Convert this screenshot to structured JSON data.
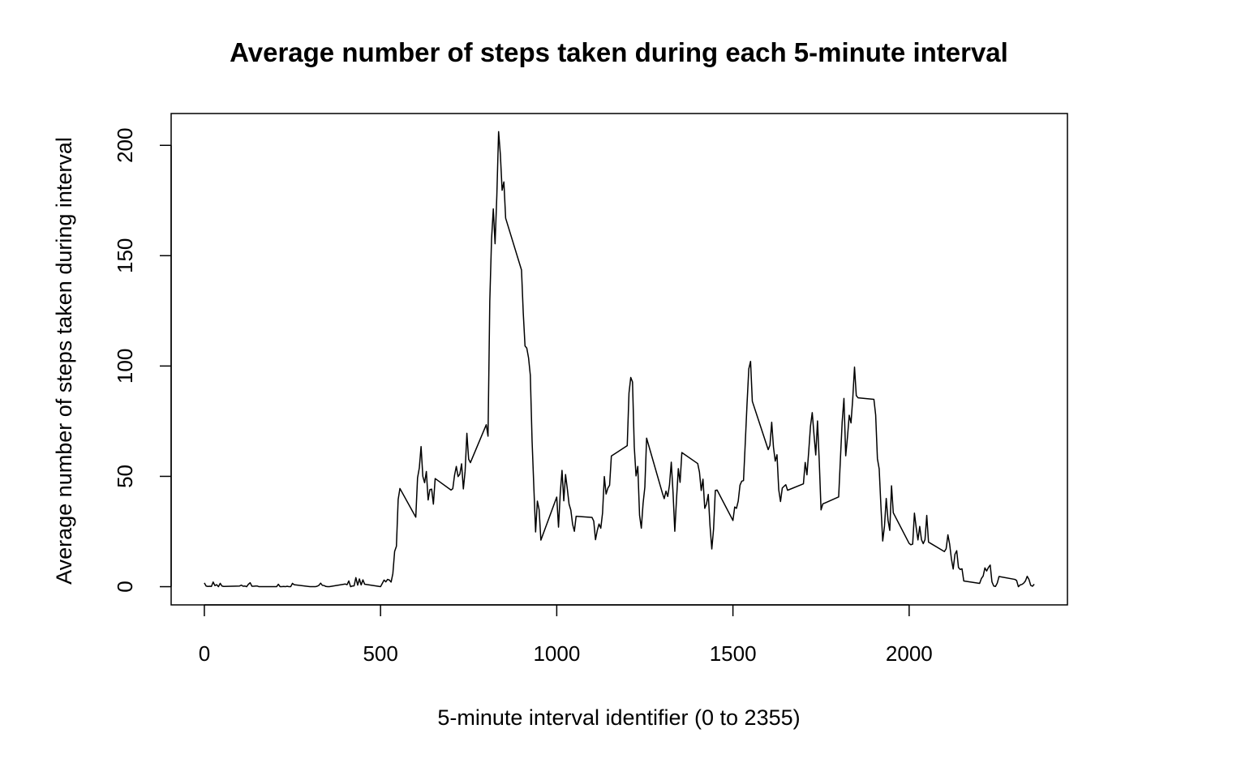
{
  "chart_data": {
    "type": "line",
    "title": "Average number of steps taken during each 5-minute interval",
    "x_label": "5-minute interval identifier (0 to 2355)",
    "y_label": "Average number of steps taken during interval",
    "color": "#000000",
    "x": [
      0,
      5,
      10,
      15,
      20,
      25,
      30,
      35,
      40,
      45,
      50,
      55,
      100,
      105,
      110,
      115,
      120,
      125,
      130,
      135,
      140,
      145,
      150,
      155,
      200,
      205,
      210,
      215,
      220,
      225,
      230,
      235,
      240,
      245,
      250,
      255,
      300,
      305,
      310,
      315,
      320,
      325,
      330,
      335,
      340,
      345,
      350,
      355,
      400,
      405,
      410,
      415,
      420,
      425,
      430,
      435,
      440,
      445,
      450,
      455,
      500,
      505,
      510,
      515,
      520,
      525,
      530,
      535,
      540,
      545,
      550,
      555,
      600,
      605,
      610,
      615,
      620,
      625,
      630,
      635,
      640,
      645,
      650,
      655,
      700,
      705,
      710,
      715,
      720,
      725,
      730,
      735,
      740,
      745,
      750,
      755,
      800,
      805,
      810,
      815,
      820,
      825,
      830,
      835,
      840,
      845,
      850,
      855,
      900,
      905,
      910,
      915,
      920,
      925,
      930,
      935,
      940,
      945,
      950,
      955,
      1000,
      1005,
      1010,
      1015,
      1020,
      1025,
      1030,
      1035,
      1040,
      1045,
      1050,
      1055,
      1100,
      1105,
      1110,
      1115,
      1120,
      1125,
      1130,
      1135,
      1140,
      1145,
      1150,
      1155,
      1200,
      1205,
      1210,
      1215,
      1220,
      1225,
      1230,
      1235,
      1240,
      1245,
      1250,
      1255,
      1300,
      1305,
      1310,
      1315,
      1320,
      1325,
      1330,
      1335,
      1340,
      1345,
      1350,
      1355,
      1400,
      1405,
      1410,
      1415,
      1420,
      1425,
      1430,
      1435,
      1440,
      1445,
      1450,
      1455,
      1500,
      1505,
      1510,
      1515,
      1520,
      1525,
      1530,
      1535,
      1540,
      1545,
      1550,
      1555,
      1600,
      1605,
      1610,
      1615,
      1620,
      1625,
      1630,
      1635,
      1640,
      1645,
      1650,
      1655,
      1700,
      1705,
      1710,
      1715,
      1720,
      1725,
      1730,
      1735,
      1740,
      1745,
      1750,
      1755,
      1800,
      1805,
      1810,
      1815,
      1820,
      1825,
      1830,
      1835,
      1840,
      1845,
      1850,
      1855,
      1900,
      1905,
      1910,
      1915,
      1920,
      1925,
      1930,
      1935,
      1940,
      1945,
      1950,
      1955,
      2000,
      2005,
      2010,
      2015,
      2020,
      2025,
      2030,
      2035,
      2040,
      2045,
      2050,
      2055,
      2100,
      2105,
      2110,
      2115,
      2120,
      2125,
      2130,
      2135,
      2140,
      2145,
      2150,
      2155,
      2200,
      2205,
      2210,
      2215,
      2220,
      2225,
      2230,
      2235,
      2240,
      2245,
      2250,
      2255,
      2300,
      2305,
      2310,
      2315,
      2320,
      2325,
      2330,
      2335,
      2340,
      2345,
      2350,
      2355
    ],
    "values": [
      1.7,
      0.3,
      0.1,
      0.2,
      0.1,
      2.1,
      0.5,
      0.9,
      0,
      1.5,
      0.3,
      0.1,
      0.3,
      0.7,
      0.2,
      0.3,
      0,
      1.1,
      1.8,
      0.2,
      0.2,
      0.3,
      0.3,
      0,
      0,
      0,
      1.1,
      0,
      0,
      0.1,
      0,
      0.2,
      0,
      0,
      1.5,
      0.9,
      0,
      0,
      0,
      0,
      0.2,
      0.6,
      1.6,
      0.6,
      0.5,
      0.1,
      0,
      0,
      1.2,
      0.9,
      2.6,
      0,
      0.3,
      0.4,
      4.1,
      0.7,
      3.5,
      0.8,
      3.1,
      1.1,
      0,
      1.5,
      3,
      2.2,
      3.3,
      3,
      2.1,
      6,
      16,
      18.3,
      39.5,
      44.5,
      31.5,
      49.3,
      53.8,
      63.5,
      50,
      47.1,
      52.2,
      39.3,
      44,
      44.2,
      37.4,
      49,
      43.8,
      44.4,
      50.5,
      54.5,
      49.9,
      51,
      55.7,
      44.3,
      52.3,
      69.5,
      57.8,
      56.2,
      73.4,
      68.2,
      129.4,
      157.5,
      171.2,
      155.4,
      177.3,
      206.2,
      195.9,
      179.6,
      183.4,
      167,
      143.5,
      124,
      109.1,
      108.1,
      103.7,
      95.9,
      66.2,
      45.2,
      24.8,
      38.8,
      34.9,
      21.1,
      40.6,
      27,
      42.4,
      52.7,
      38.9,
      50.8,
      44.3,
      37.4,
      34.7,
      28.3,
      25.1,
      31.9,
      31.4,
      29.7,
      21.3,
      25.5,
      28.4,
      26.5,
      33.4,
      49.9,
      42,
      44.6,
      46,
      59.2,
      63.9,
      87.7,
      94.8,
      92.8,
      63.4,
      50.2,
      54.5,
      32.4,
      26.5,
      37.7,
      45.1,
      67.3,
      42.3,
      39.9,
      43.3,
      40.9,
      46.2,
      56.4,
      42.8,
      25.1,
      40,
      53.5,
      47.3,
      60.8,
      55.8,
      51.9,
      43.6,
      48.7,
      35.5,
      37.5,
      41.8,
      27.5,
      17.1,
      26.1,
      43.6,
      43.8,
      30,
      36.1,
      35.5,
      38.8,
      46,
      47.8,
      48.1,
      65.3,
      82.9,
      98.7,
      102.1,
      84,
      62.1,
      64.1,
      74.5,
      63.2,
      56.9,
      59.8,
      43.9,
      38.6,
      44.7,
      45.5,
      46.2,
      43.7,
      46.6,
      56.3,
      50.7,
      61.2,
      72.7,
      78.9,
      68.9,
      59.7,
      75.1,
      56.5,
      34.8,
      37.5,
      40.7,
      58,
      74.7,
      85.3,
      59.3,
      67.8,
      77.7,
      74.2,
      85.3,
      99.5,
      86.6,
      85.6,
      84.9,
      77.8,
      58,
      53.4,
      36.3,
      20.7,
      27.4,
      40,
      30.2,
      25.5,
      45.7,
      33.5,
      19.6,
      19,
      19.3,
      33.3,
      26.8,
      21.2,
      27.3,
      21.3,
      19.5,
      21.3,
      32.3,
      20.2,
      15.9,
      17.2,
      23.5,
      19.2,
      12.5,
      8,
      14.7,
      16.3,
      8.7,
      7.8,
      8.1,
      2.6,
      1.5,
      3.7,
      4.8,
      8.5,
      7.1,
      8.7,
      9.8,
      2.2,
      0.3,
      0.1,
      1.6,
      4.6,
      3.3,
      2.8,
      0,
      0.8,
      1,
      1.6,
      2.6,
      4.7,
      3.3,
      0.6,
      0.2,
      1.1
    ],
    "xlim": [
      -94.2,
      2449.2
    ],
    "ylim": [
      -8.25,
      214.42
    ],
    "xticks": [
      0,
      500,
      1000,
      1500,
      2000
    ],
    "yticks": [
      0,
      50,
      100,
      150,
      200
    ]
  }
}
